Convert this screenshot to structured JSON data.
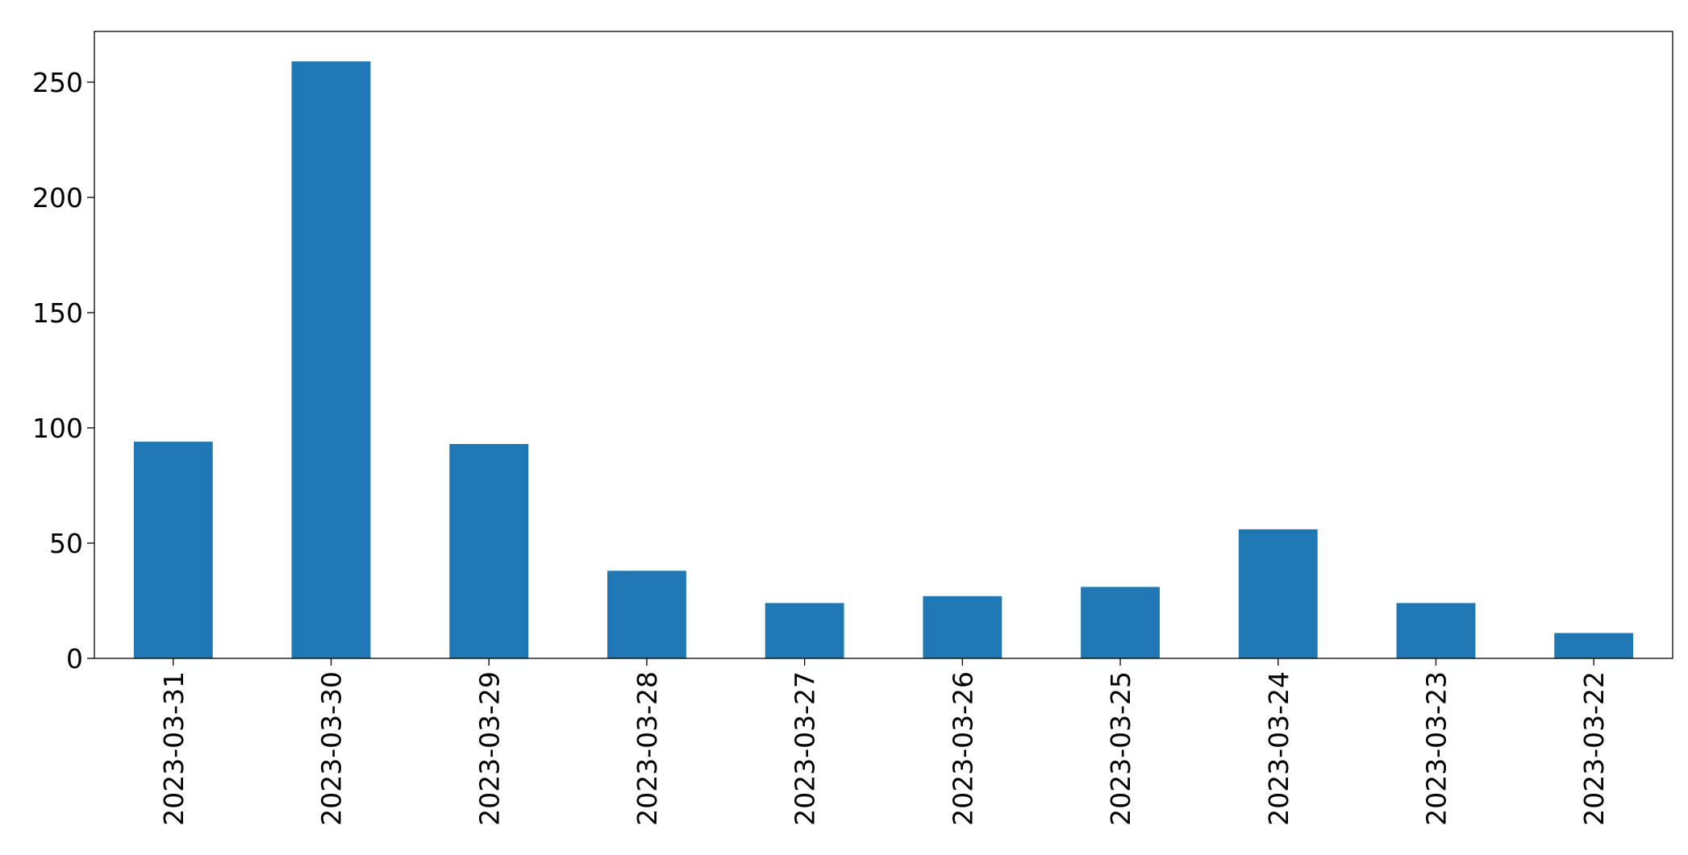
{
  "chart_data": {
    "type": "bar",
    "categories": [
      "2023-03-31",
      "2023-03-30",
      "2023-03-29",
      "2023-03-28",
      "2023-03-27",
      "2023-03-26",
      "2023-03-25",
      "2023-03-24",
      "2023-03-23",
      "2023-03-22"
    ],
    "values": [
      94,
      259,
      93,
      38,
      24,
      27,
      31,
      56,
      24,
      11
    ],
    "color": "#1f77b4",
    "ylim": [
      0,
      272
    ],
    "yticks": [
      0,
      50,
      100,
      150,
      200,
      250
    ],
    "grid": false
  }
}
